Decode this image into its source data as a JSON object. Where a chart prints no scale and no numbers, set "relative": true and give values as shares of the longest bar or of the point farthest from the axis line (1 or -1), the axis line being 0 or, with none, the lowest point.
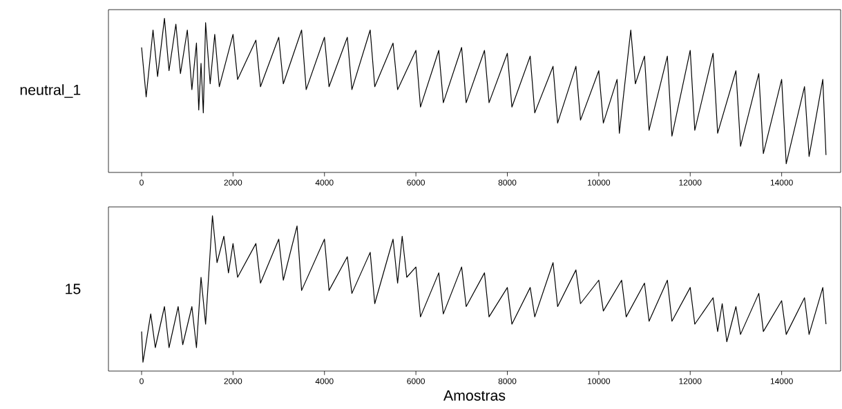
{
  "chart_data": [
    {
      "type": "line",
      "ylabel": "neutral_1",
      "relative": true,
      "color": "#000000",
      "tick_labels": "x",
      "xlim": [
        -725,
        15290
      ],
      "xticks": [
        0,
        2000,
        4000,
        6000,
        8000,
        10000,
        12000,
        14000
      ],
      "x": [
        0,
        100,
        250,
        350,
        500,
        600,
        750,
        850,
        1000,
        1100,
        1200,
        1250,
        1300,
        1350,
        1400,
        1500,
        1600,
        1700,
        2000,
        2100,
        2500,
        2600,
        3000,
        3100,
        3500,
        3600,
        4000,
        4100,
        4500,
        4600,
        5000,
        5100,
        5500,
        5600,
        6000,
        6100,
        6500,
        6600,
        7000,
        7100,
        7500,
        7600,
        8000,
        8100,
        8500,
        8600,
        9000,
        9100,
        9500,
        9600,
        10000,
        10100,
        10400,
        10450,
        10700,
        10800,
        11000,
        11100,
        11500,
        11600,
        12000,
        12100,
        12500,
        12600,
        13000,
        13100,
        13500,
        13600,
        14000,
        14100,
        14500,
        14600,
        14900,
        14970
      ],
      "values": [
        0.8,
        0.46,
        0.92,
        0.6,
        1.0,
        0.64,
        0.96,
        0.62,
        0.92,
        0.51,
        0.83,
        0.37,
        0.69,
        0.35,
        0.97,
        0.55,
        0.89,
        0.53,
        0.89,
        0.58,
        0.85,
        0.53,
        0.87,
        0.55,
        0.92,
        0.51,
        0.87,
        0.53,
        0.87,
        0.51,
        0.92,
        0.53,
        0.83,
        0.51,
        0.78,
        0.39,
        0.78,
        0.42,
        0.8,
        0.42,
        0.78,
        0.42,
        0.76,
        0.39,
        0.74,
        0.35,
        0.67,
        0.28,
        0.67,
        0.3,
        0.64,
        0.28,
        0.58,
        0.21,
        0.92,
        0.55,
        0.74,
        0.23,
        0.74,
        0.19,
        0.78,
        0.23,
        0.76,
        0.21,
        0.64,
        0.12,
        0.62,
        0.07,
        0.58,
        0.0,
        0.53,
        0.05,
        0.58,
        0.06
      ]
    },
    {
      "type": "line",
      "ylabel": "15",
      "xlabel": "Amostras",
      "relative": true,
      "color": "#000000",
      "tick_labels": "x",
      "xlim": [
        -725,
        15290
      ],
      "xticks": [
        0,
        2000,
        4000,
        6000,
        8000,
        10000,
        12000,
        14000
      ],
      "x": [
        0,
        30,
        200,
        300,
        500,
        600,
        800,
        900,
        1100,
        1200,
        1300,
        1400,
        1550,
        1650,
        1800,
        1900,
        2000,
        2100,
        2500,
        2600,
        3000,
        3100,
        3400,
        3500,
        4000,
        4100,
        4500,
        4600,
        5000,
        5100,
        5500,
        5600,
        5700,
        5800,
        6000,
        6100,
        6500,
        6600,
        7000,
        7100,
        7500,
        7600,
        8000,
        8100,
        8500,
        8600,
        9000,
        9100,
        9500,
        9600,
        10000,
        10100,
        10500,
        10600,
        11000,
        11100,
        11500,
        11600,
        12000,
        12100,
        12500,
        12600,
        12700,
        12800,
        13000,
        13100,
        13500,
        13600,
        14000,
        14100,
        14500,
        14600,
        14900,
        14970
      ],
      "values": [
        0.21,
        0.0,
        0.33,
        0.1,
        0.38,
        0.1,
        0.38,
        0.12,
        0.38,
        0.1,
        0.58,
        0.26,
        1.0,
        0.68,
        0.86,
        0.61,
        0.81,
        0.58,
        0.81,
        0.54,
        0.84,
        0.56,
        0.93,
        0.49,
        0.84,
        0.49,
        0.72,
        0.47,
        0.75,
        0.4,
        0.84,
        0.54,
        0.86,
        0.58,
        0.65,
        0.31,
        0.61,
        0.33,
        0.65,
        0.38,
        0.61,
        0.31,
        0.51,
        0.26,
        0.51,
        0.31,
        0.68,
        0.38,
        0.63,
        0.4,
        0.56,
        0.35,
        0.56,
        0.31,
        0.54,
        0.28,
        0.56,
        0.28,
        0.51,
        0.26,
        0.44,
        0.21,
        0.4,
        0.14,
        0.38,
        0.19,
        0.47,
        0.21,
        0.42,
        0.19,
        0.44,
        0.19,
        0.51,
        0.26
      ]
    }
  ]
}
